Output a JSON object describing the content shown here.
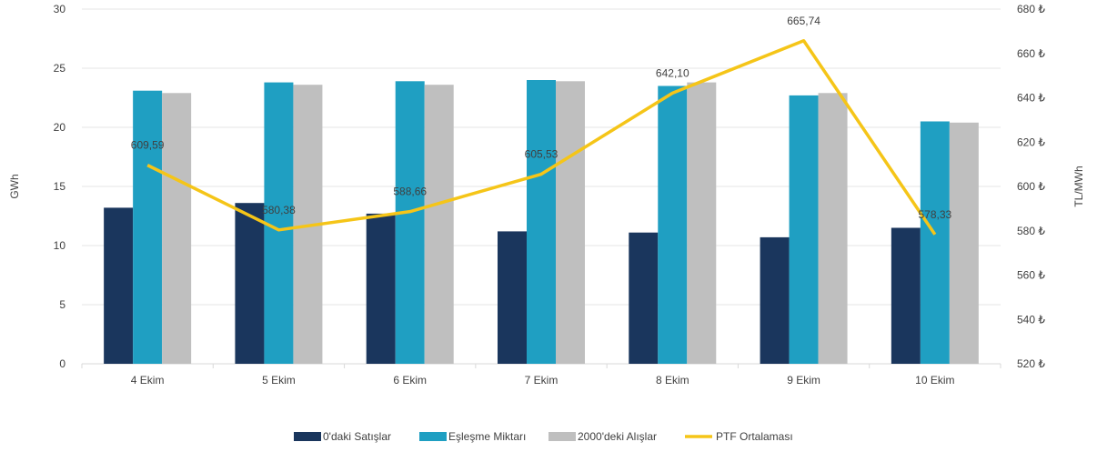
{
  "chart_data": {
    "type": "bar",
    "title": "",
    "xlabel": "",
    "ylabel": "GWh",
    "y2label": "TL/MWh",
    "categories": [
      "4 Ekim",
      "5 Ekim",
      "6 Ekim",
      "7 Ekim",
      "8 Ekim",
      "9 Ekim",
      "10 Ekim"
    ],
    "ylim": [
      0,
      30
    ],
    "yticks": [
      "0",
      "5",
      "10",
      "15",
      "20",
      "25",
      "30"
    ],
    "y2lim": [
      520,
      680
    ],
    "y2ticks": [
      "520 ₺",
      "540 ₺",
      "560 ₺",
      "580 ₺",
      "600 ₺",
      "620 ₺",
      "640 ₺",
      "660 ₺",
      "680 ₺"
    ],
    "grid": "horizontal",
    "legend_position": "bottom",
    "series": [
      {
        "name": "0'daki Satışlar",
        "type": "bar",
        "axis": "left",
        "color": "#1a365d",
        "values": [
          13.2,
          13.6,
          12.7,
          11.2,
          11.1,
          10.7,
          11.5
        ]
      },
      {
        "name": "Eşleşme Miktarı",
        "type": "bar",
        "axis": "left",
        "color": "#1f9fc2",
        "values": [
          23.1,
          23.8,
          23.9,
          24.0,
          23.5,
          22.7,
          20.5
        ]
      },
      {
        "name": "2000'deki Alışlar",
        "type": "bar",
        "axis": "left",
        "color": "#bfbfbf",
        "values": [
          22.9,
          23.6,
          23.6,
          23.9,
          23.8,
          22.9,
          20.4
        ]
      },
      {
        "name": "PTF Ortalaması",
        "type": "line",
        "axis": "right",
        "color": "#f5c518",
        "values": [
          609.59,
          580.38,
          588.66,
          605.53,
          642.1,
          665.74,
          578.33
        ],
        "labels": [
          "609,59",
          "580,38",
          "588,66",
          "605,53",
          "642,10",
          "665,74",
          "578,33"
        ]
      }
    ]
  }
}
